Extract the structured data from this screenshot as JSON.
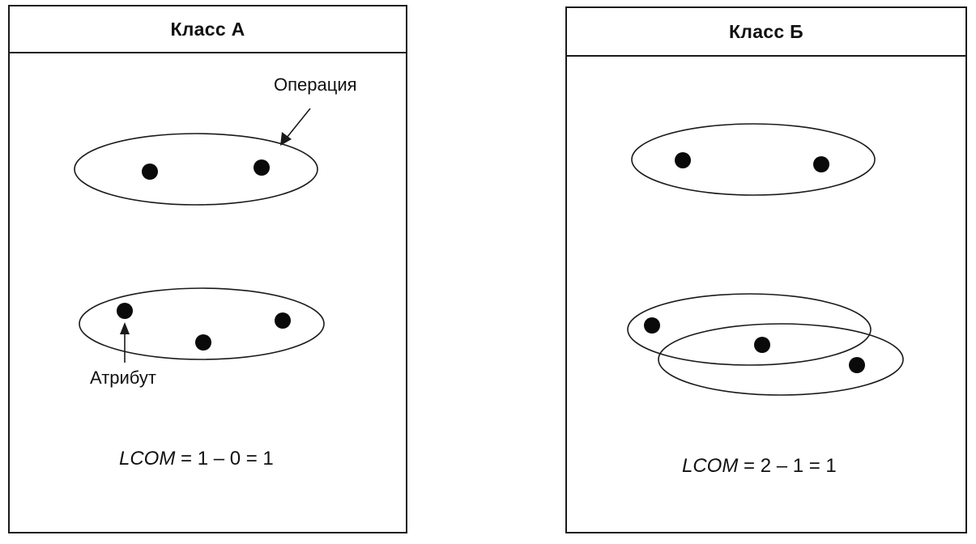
{
  "class_a": {
    "title": "Класс А",
    "label_operation": "Операция",
    "label_attribute": "Атрибут",
    "formula_var": "LCOM",
    "formula_expr": " = 1 – 0 = 1"
  },
  "class_b": {
    "title": "Класс Б",
    "formula_var": "LCOM",
    "formula_expr": " = 2 – 1 = 1"
  }
}
